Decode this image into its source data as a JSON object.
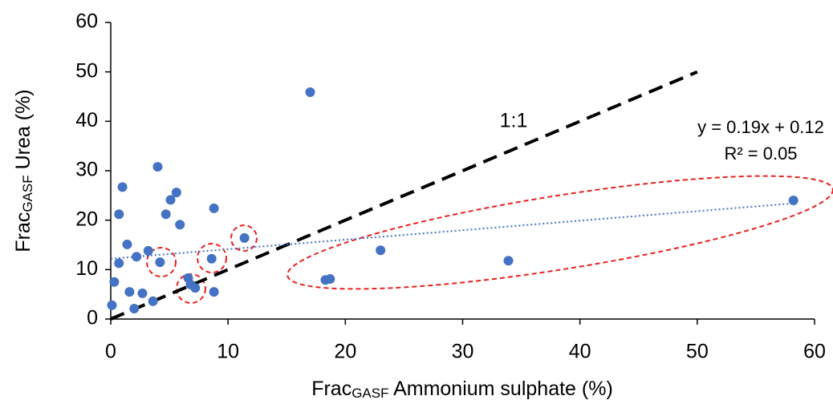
{
  "chart_data": {
    "type": "scatter",
    "x_label": {
      "main": "Frac",
      "sub": "GASF",
      "rest": " Ammonium sulphate (%)"
    },
    "y_label": {
      "main": "Frac",
      "sub": "GASF",
      "rest": " Urea (%)"
    },
    "x": [
      0.1,
      0.3,
      0.7,
      0.7,
      1.0,
      1.4,
      1.6,
      2.0,
      2.2,
      2.7,
      3.2,
      3.6,
      4.0,
      4.2,
      4.7,
      5.1,
      5.6,
      5.9,
      6.6,
      6.8,
      7.2,
      8.6,
      8.8,
      8.8,
      11.4,
      17.0,
      18.3,
      18.7,
      23.0,
      33.9,
      58.2
    ],
    "values": [
      2.8,
      7.5,
      11.3,
      21.2,
      26.7,
      15.1,
      5.5,
      2.1,
      12.6,
      5.2,
      13.8,
      3.6,
      30.8,
      11.5,
      21.2,
      24.1,
      25.6,
      19.1,
      8.3,
      7.0,
      6.3,
      12.2,
      5.5,
      22.4,
      16.4,
      45.9,
      7.9,
      8.1,
      13.9,
      11.8,
      24.0
    ],
    "color": "#4472c4",
    "lines": [
      {
        "x": [
          0,
          50
        ],
        "values": [
          0,
          50
        ],
        "color": "#000000",
        "style": "dashed"
      },
      {
        "x": [
          0,
          58.2
        ],
        "values": [
          12.2,
          23.4
        ],
        "color": "#4472c4",
        "style": "dotted"
      }
    ],
    "annotations": [
      "1:1",
      "y = 0.19x + 0.12",
      "R² = 0.05"
    ],
    "xlim": [
      0,
      60
    ],
    "xticks": [
      0,
      10,
      20,
      30,
      40,
      50,
      60
    ],
    "ylim": [
      0,
      60
    ],
    "yticks": [
      0,
      10,
      20,
      30,
      40,
      50,
      60
    ]
  }
}
